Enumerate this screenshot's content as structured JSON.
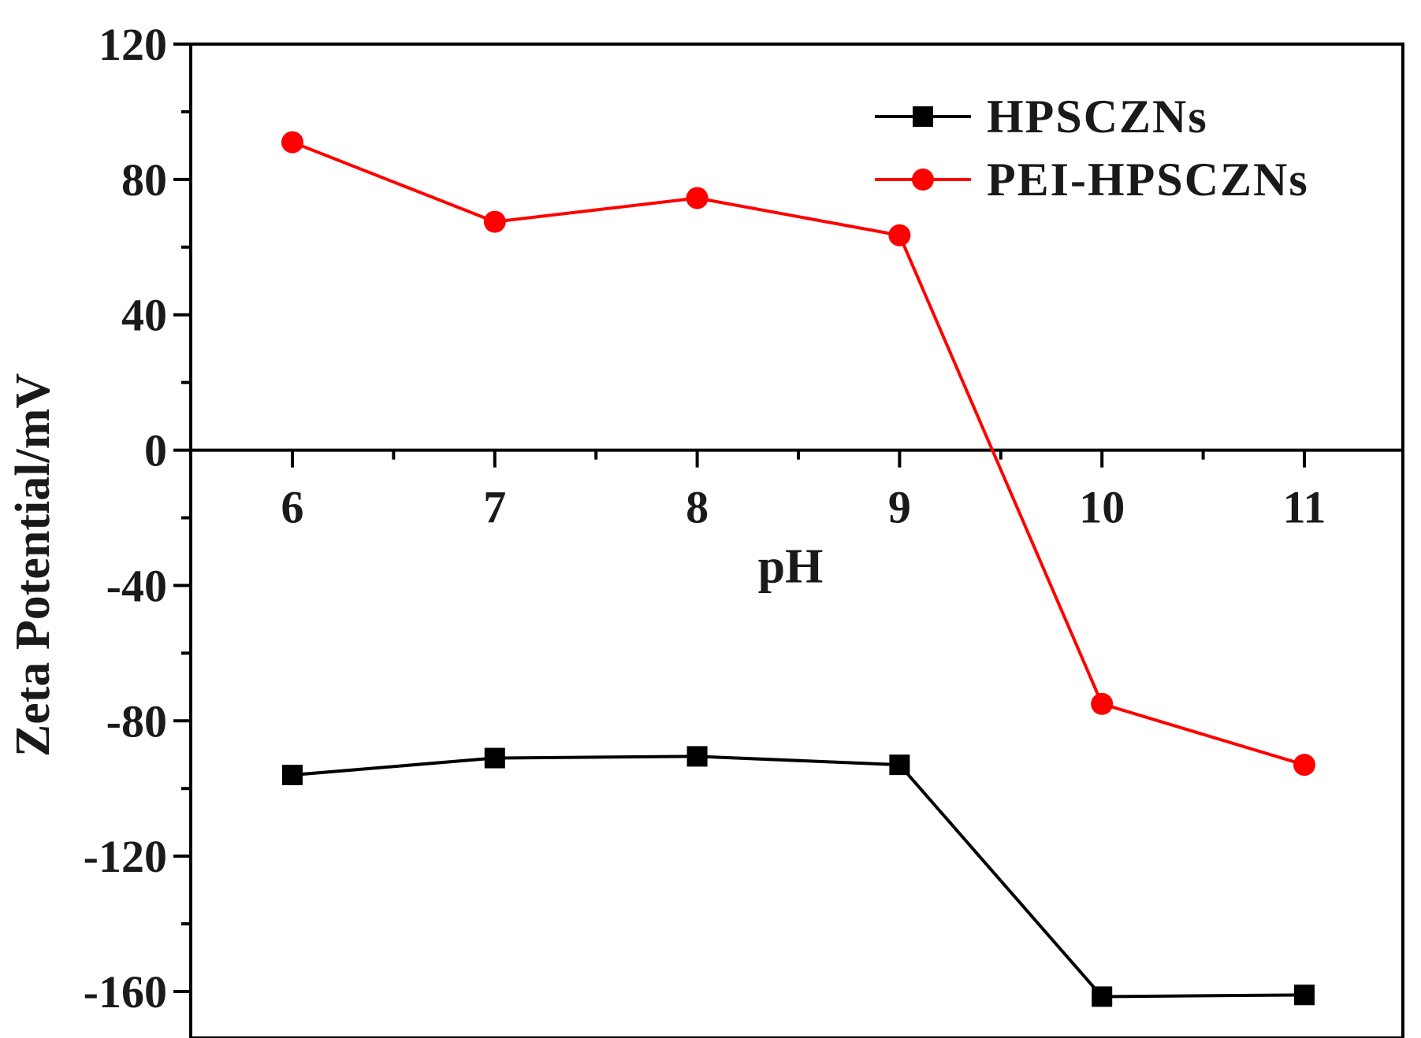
{
  "chart_data": {
    "type": "line",
    "xlabel": "pH",
    "ylabel": "Zeta Potential/mV",
    "xlim": [
      5.5,
      11.5
    ],
    "ylim": [
      -165,
      120
    ],
    "x_ticks": [
      "6",
      "7",
      "8",
      "9",
      "10",
      "11"
    ],
    "y_ticks": [
      "120",
      "80",
      "40",
      "0",
      "-40",
      "-80",
      "-120",
      "-160"
    ],
    "x": [
      6,
      7,
      8,
      9,
      10,
      11
    ],
    "legend_position": "top-right",
    "grid": false,
    "series": [
      {
        "name": "HPSCZNs",
        "color": "#000000",
        "marker": "square",
        "values": [
          -96,
          -91,
          -90.5,
          -93,
          -161.5,
          -161
        ]
      },
      {
        "name": "PEI-HPSCZNs",
        "color": "#ff0000",
        "marker": "circle",
        "values": [
          91,
          67.5,
          74.5,
          63.5,
          -75,
          -93
        ]
      }
    ]
  }
}
